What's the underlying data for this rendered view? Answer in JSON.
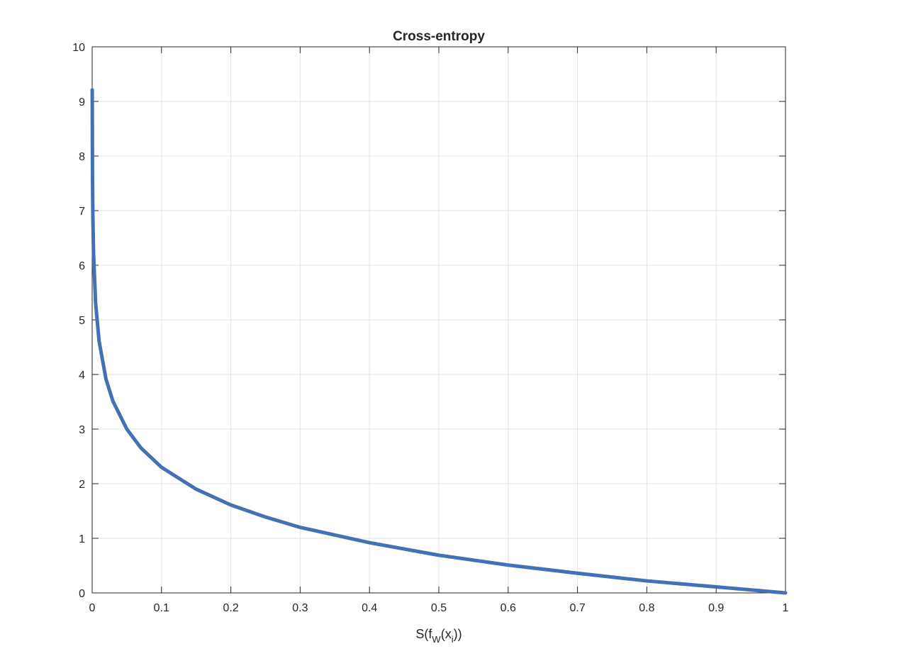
{
  "chart_data": {
    "type": "line",
    "title": "Cross-entropy",
    "xlabel": [
      "S(f",
      "W",
      "(x",
      "i",
      "))"
    ],
    "x": [
      0.0001,
      0.0005,
      0.001,
      0.002,
      0.005,
      0.01,
      0.02,
      0.03,
      0.05,
      0.07,
      0.1,
      0.15,
      0.2,
      0.25,
      0.3,
      0.4,
      0.5,
      0.6,
      0.7,
      0.8,
      0.9,
      1
    ],
    "series": [
      {
        "name": "Cross-entropy",
        "color": "#4470b4",
        "values": [
          9.21,
          7.6,
          6.91,
          6.21,
          5.3,
          4.61,
          3.91,
          3.51,
          3.0,
          2.66,
          2.3,
          1.9,
          1.61,
          1.39,
          1.2,
          0.92,
          0.69,
          0.51,
          0.36,
          0.22,
          0.11,
          0
        ]
      }
    ],
    "xlim": [
      0,
      1
    ],
    "xticks": [
      0,
      0.1,
      0.2,
      0.3,
      0.4,
      0.5,
      0.6,
      0.7,
      0.8,
      0.9,
      1
    ],
    "ylim": [
      0,
      10
    ],
    "yticks": [
      0,
      1,
      2,
      3,
      4,
      5,
      6,
      7,
      8,
      9,
      10
    ],
    "grid": true
  }
}
